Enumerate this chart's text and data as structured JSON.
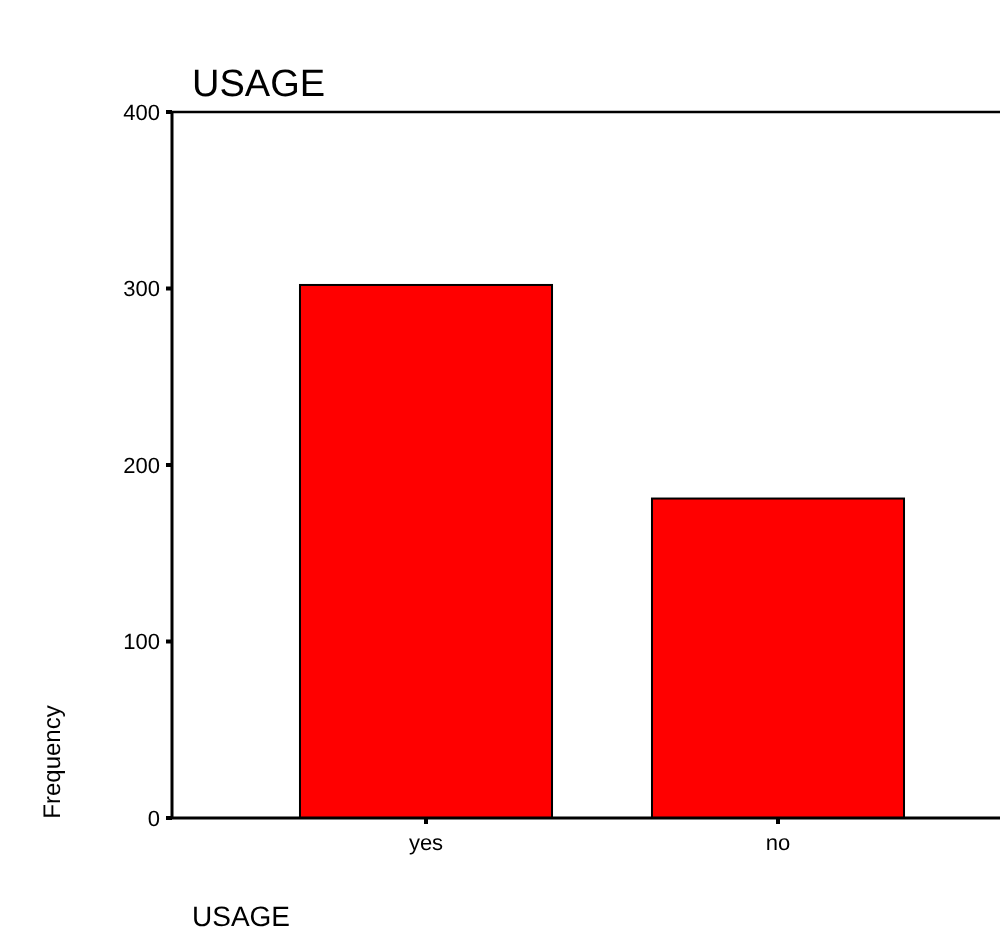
{
  "chart_data": {
    "type": "bar",
    "title": "USAGE",
    "xlabel": "USAGE",
    "ylabel": "Frequency",
    "categories": [
      "yes",
      "no"
    ],
    "values": [
      302,
      181
    ],
    "color": "#ff0000",
    "ylim": [
      0,
      400
    ],
    "yticks": [
      0,
      100,
      200,
      300,
      400
    ]
  }
}
